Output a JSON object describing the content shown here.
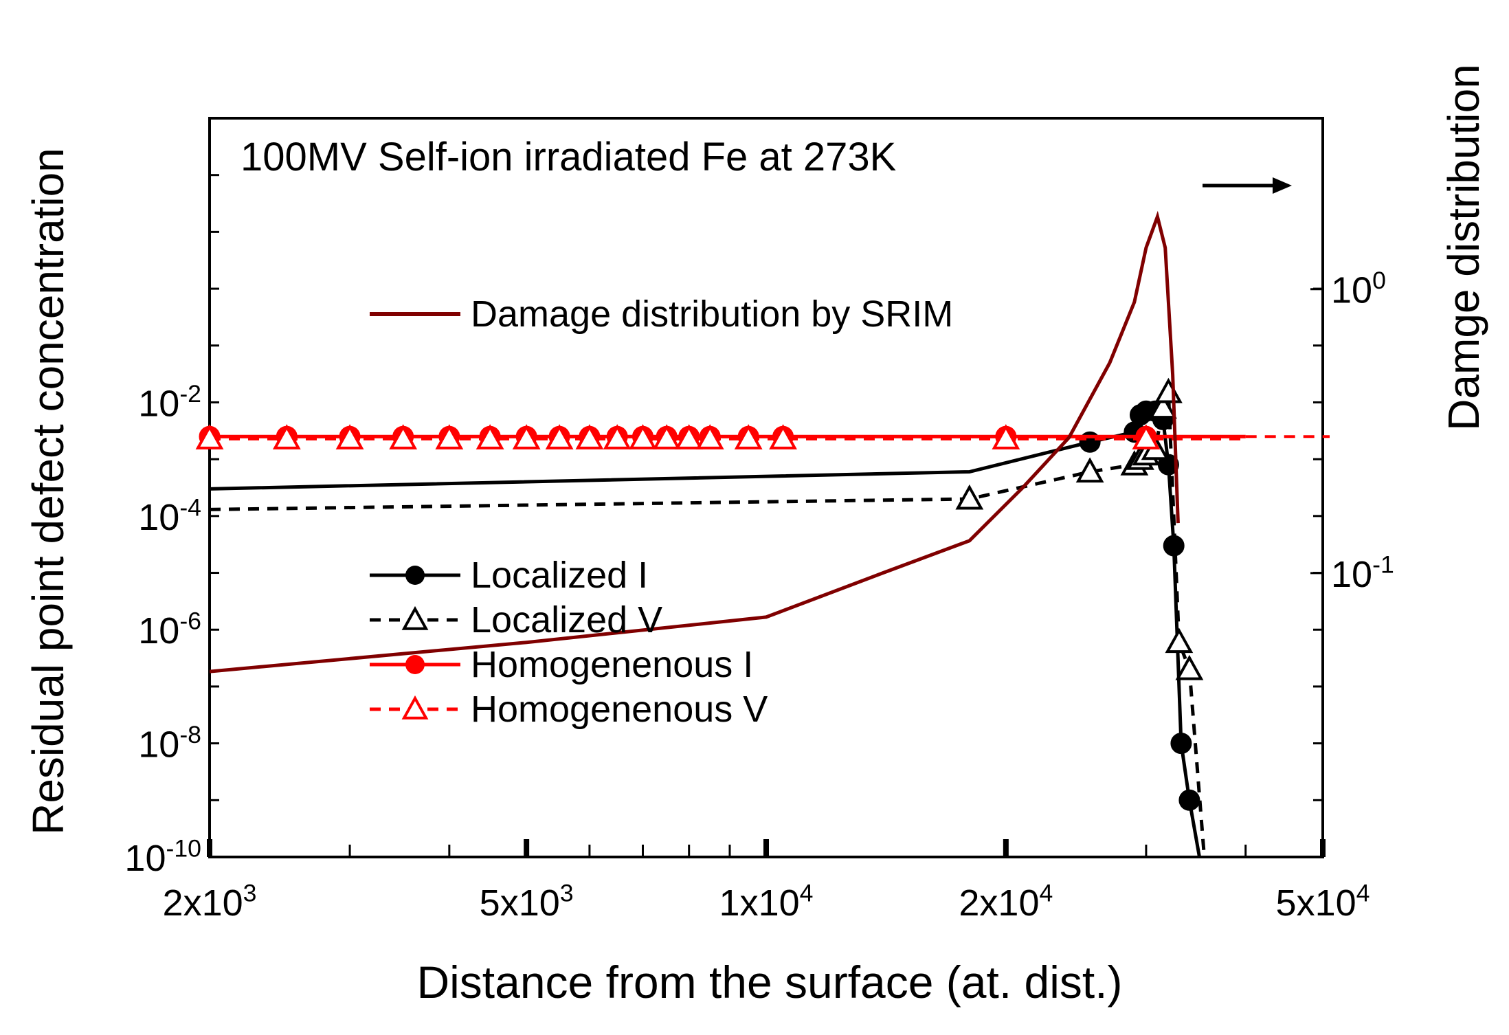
{
  "chart_data": {
    "type": "line",
    "title": "100MV Self-ion irradiated Fe at 273K",
    "xlabel": "Distance from the surface (at. dist.)",
    "ylabel": "Residual point defect concentration",
    "y2label": "Damge distribution",
    "xscale": "log",
    "yscale": "log",
    "xlim": [
      2000,
      50000
    ],
    "ylim": [
      1e-10,
      1000.0
    ],
    "y2lim": [
      0.01,
      4
    ],
    "x_ticks": [
      {
        "value": 2000,
        "base": "2x10",
        "exp": "3"
      },
      {
        "value": 5000,
        "base": "5x10",
        "exp": "3"
      },
      {
        "value": 10000,
        "base": "1x10",
        "exp": "4"
      },
      {
        "value": 20000,
        "base": "2x10",
        "exp": "4"
      },
      {
        "value": 50000,
        "base": "5x10",
        "exp": "4"
      }
    ],
    "y_ticks": [
      {
        "value": 1e-10,
        "base": "10",
        "exp": "-10"
      },
      {
        "value": 1e-08,
        "base": "10",
        "exp": "-8"
      },
      {
        "value": 1e-06,
        "base": "10",
        "exp": "-6"
      },
      {
        "value": 0.0001,
        "base": "10",
        "exp": "-4"
      },
      {
        "value": 0.01,
        "base": "10",
        "exp": "-2"
      }
    ],
    "y2_ticks": [
      {
        "value": 1,
        "base": "10",
        "exp": "0"
      },
      {
        "value": 0.1,
        "base": "10",
        "exp": "-1"
      }
    ],
    "arrow_hint": "right axis",
    "legend_damage": "Damage distribution by SRIM",
    "series": [
      {
        "name": "Localized I",
        "color": "#000000",
        "dash": "solid",
        "marker": "circle",
        "filled": true,
        "x": [
          2000,
          18000,
          25500,
          29000,
          29500,
          30000,
          30800,
          31500,
          32000,
          32500,
          33200,
          34000,
          35000
        ],
        "y": [
          0.0003,
          0.0006,
          0.002,
          0.003,
          0.006,
          0.007,
          0.007,
          0.005,
          0.0008,
          3e-05,
          1e-08,
          1e-09,
          1e-10
        ],
        "markers": [
          2,
          3,
          4,
          5,
          6,
          7,
          8,
          9,
          10,
          11
        ]
      },
      {
        "name": "Localized V",
        "color": "#000000",
        "dash": "dashed",
        "marker": "triangle",
        "filled": false,
        "x": [
          2000,
          18000,
          25500,
          29000,
          29500,
          30000,
          30800,
          31500,
          32000,
          33000,
          34000,
          35500
        ],
        "y": [
          0.00013,
          0.0002,
          0.0006,
          0.0008,
          0.001,
          0.0012,
          0.0015,
          0.008,
          0.015,
          6e-07,
          2e-07,
          1e-10
        ],
        "markers": [
          1,
          2,
          3,
          4,
          5,
          6,
          7,
          8,
          9,
          10
        ]
      },
      {
        "name": "Homogenenous I",
        "color": "#ff0000",
        "dash": "solid",
        "marker": "circle",
        "filled": true,
        "x": [
          2000,
          2500,
          3000,
          3500,
          4000,
          4500,
          5000,
          5500,
          6000,
          6500,
          7000,
          7500,
          8000,
          8500,
          9500,
          10500,
          20000,
          30000,
          40000
        ],
        "y": [
          0.0025,
          0.0025,
          0.0025,
          0.0025,
          0.0025,
          0.0025,
          0.0025,
          0.0025,
          0.0025,
          0.0025,
          0.0025,
          0.0025,
          0.0025,
          0.0025,
          0.0025,
          0.0025,
          0.0025,
          0.0025,
          0.0025
        ],
        "markers": [
          0,
          1,
          2,
          3,
          4,
          5,
          6,
          7,
          8,
          9,
          10,
          11,
          12,
          13,
          14,
          15,
          16,
          17
        ]
      },
      {
        "name": "Homogenenous V",
        "color": "#ff0000",
        "dash": "dashed",
        "marker": "triangle",
        "filled": false,
        "x": [
          2000,
          2500,
          3000,
          3500,
          4000,
          4500,
          5000,
          5500,
          6000,
          6500,
          7000,
          7500,
          8000,
          8500,
          9500,
          10500,
          20000,
          30000,
          40000
        ],
        "y": [
          0.0023,
          0.0023,
          0.0023,
          0.0023,
          0.0023,
          0.0023,
          0.0023,
          0.0023,
          0.0023,
          0.0023,
          0.0023,
          0.0023,
          0.0023,
          0.0023,
          0.0023,
          0.0023,
          0.0023,
          0.0023,
          0.0023
        ],
        "markers": [
          0,
          1,
          2,
          3,
          4,
          5,
          6,
          7,
          8,
          9,
          10,
          11,
          12,
          13,
          14,
          15,
          16,
          17
        ]
      }
    ],
    "damage_series": {
      "name": "Damage distribution by SRIM",
      "color": "#800000",
      "axis": "right",
      "x": [
        2000,
        5000,
        10000,
        14000,
        18000,
        21000,
        24000,
        27000,
        29000,
        30000,
        31000,
        31700,
        32400,
        32900
      ],
      "y": [
        0.045,
        0.057,
        0.07,
        0.1,
        0.13,
        0.2,
        0.3,
        0.55,
        0.9,
        1.4,
        1.8,
        1.4,
        0.5,
        0.15
      ]
    }
  }
}
